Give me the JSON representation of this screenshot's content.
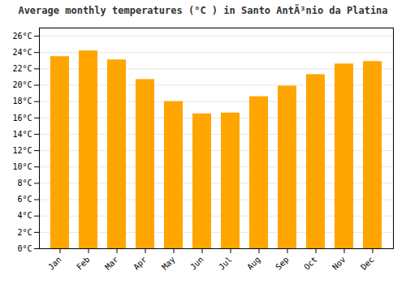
{
  "chart_data": {
    "type": "bar",
    "title": "Average monthly temperatures (°C ) in Santo AntÃ³nio da Platina",
    "categories": [
      "Jan",
      "Feb",
      "Mar",
      "Apr",
      "May",
      "Jun",
      "Jul",
      "Aug",
      "Sep",
      "Oct",
      "Nov",
      "Dec"
    ],
    "values": [
      23.5,
      24.2,
      23.1,
      20.7,
      18.0,
      16.5,
      16.6,
      18.6,
      19.9,
      21.3,
      22.6,
      22.9
    ],
    "color": "#FFA500",
    "ylim": [
      0,
      27
    ],
    "yticks": [
      {
        "value": 0,
        "label": "0°C"
      },
      {
        "value": 2,
        "label": "2°C"
      },
      {
        "value": 4,
        "label": "4°C"
      },
      {
        "value": 6,
        "label": "6°C"
      },
      {
        "value": 8,
        "label": "8°C"
      },
      {
        "value": 10,
        "label": "10°C"
      },
      {
        "value": 12,
        "label": "12°C"
      },
      {
        "value": 14,
        "label": "14°C"
      },
      {
        "value": 16,
        "label": "16°C"
      },
      {
        "value": 18,
        "label": "18°C"
      },
      {
        "value": 20,
        "label": "20°C"
      },
      {
        "value": 22,
        "label": "22°C"
      },
      {
        "value": 24,
        "label": "24°C"
      },
      {
        "value": 26,
        "label": "26°C"
      }
    ],
    "grid": true
  }
}
